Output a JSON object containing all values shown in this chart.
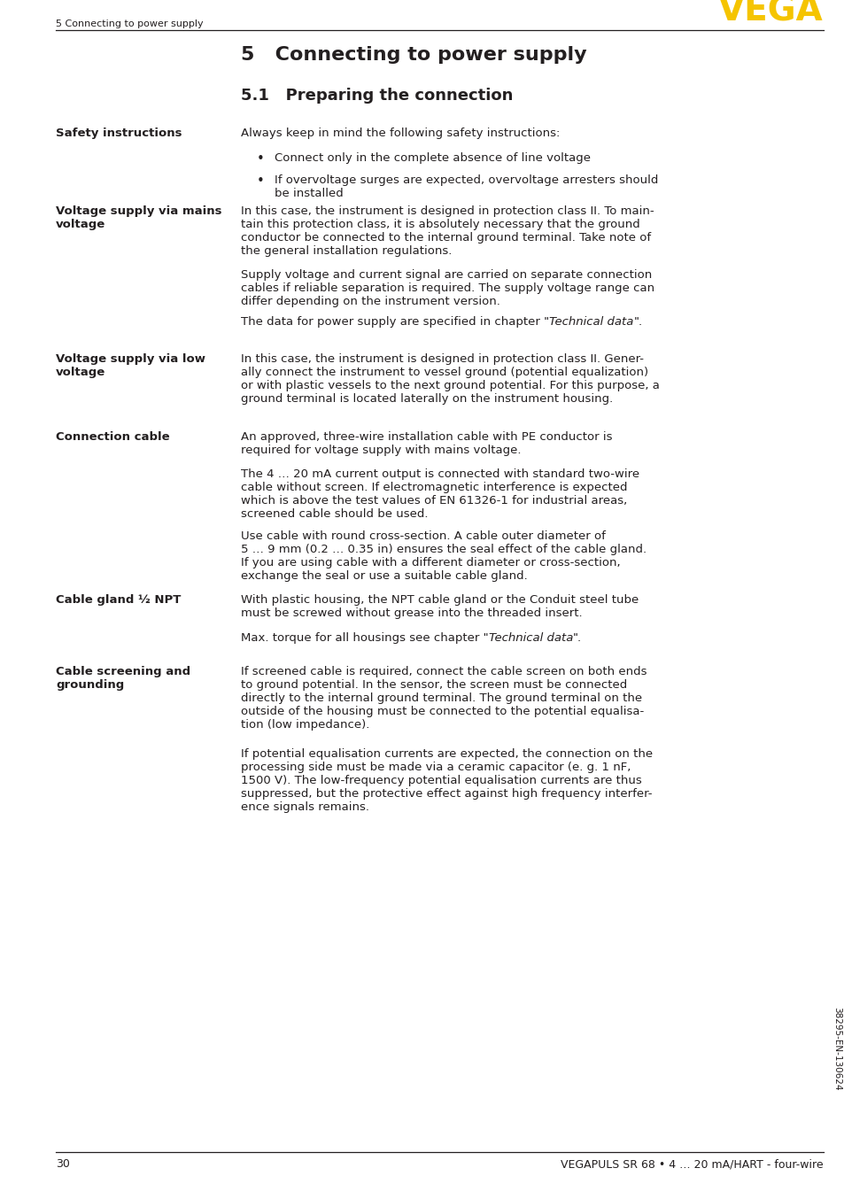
{
  "page_number": "30",
  "footer_text": "VEGAPULS SR 68 • 4 … 20 mA/HART - four-wire",
  "header_section": "5 Connecting to power supply",
  "vega_logo": "VEGA",
  "chapter_title": "5   Connecting to power supply",
  "section_title": "5.1   Preparing the connection",
  "sidebar_label_1": "Safety instructions",
  "sidebar_label_2": "Voltage supply via mains\nvoltage",
  "sidebar_label_3": "Voltage supply via low\nvoltage",
  "sidebar_label_4": "Connection cable",
  "sidebar_label_5": "Cable gland ½ NPT",
  "sidebar_label_6": "Cable screening and\ngrounding",
  "content_1_intro": "Always keep in mind the following safety instructions:",
  "content_1_b1": "Connect only in the complete absence of line voltage",
  "content_1_b2": "If overvoltage surges are expected, overvoltage arresters should\nbe installed",
  "content_2_para1": "In this case, the instrument is designed in protection class II. To main-\ntain this protection class, it is absolutely necessary that the ground\nconductor be connected to the internal ground terminal. Take note of\nthe general installation regulations.",
  "content_2_para2": "Supply voltage and current signal are carried on separate connection\ncables if reliable separation is required. The supply voltage range can\ndiffer depending on the instrument version.",
  "content_2_para3_pre": "The data for power supply are specified in chapter \"",
  "content_2_para3_italic": "Technical data",
  "content_2_para3_post": "\".",
  "content_3_para1": "In this case, the instrument is designed in protection class II. Gener-\nally connect the instrument to vessel ground (potential equalization)\nor with plastic vessels to the next ground potential. For this purpose, a\nground terminal is located laterally on the instrument housing.",
  "content_4_para1": "An approved, three-wire installation cable with PE conductor is\nrequired for voltage supply with mains voltage.",
  "content_4_para2": "The 4 … 20 mA current output is connected with standard two-wire\ncable without screen. If electromagnetic interference is expected\nwhich is above the test values of EN 61326-1 for industrial areas,\nscreened cable should be used.",
  "content_4_para3": "Use cable with round cross-section. A cable outer diameter of\n5 … 9 mm (0.2 … 0.35 in) ensures the seal effect of the cable gland.\nIf you are using cable with a different diameter or cross-section,\nexchange the seal or use a suitable cable gland.",
  "content_5_para1": "With plastic housing, the NPT cable gland or the Conduit steel tube\nmust be screwed without grease into the threaded insert.",
  "content_5_para2_pre": "Max. torque for all housings see chapter \"",
  "content_5_para2_italic": "Technical data",
  "content_5_para2_post": "\".",
  "content_6_para1": "If screened cable is required, connect the cable screen on both ends\nto ground potential. In the sensor, the screen must be connected\ndirectly to the internal ground terminal. The ground terminal on the\noutside of the housing must be connected to the potential equalisa-\ntion (low impedance).",
  "content_6_para2": "If potential equalisation currents are expected, the connection on the\nprocessing side must be made via a ceramic capacitor (e. g. 1 nF,\n1500 V). The low-frequency potential equalisation currents are thus\nsuppressed, but the protective effect against high frequency interfer-\nence signals remains.",
  "rotated_text": "38295-EN-130624",
  "bg_color": "#ffffff",
  "text_color": "#231f20",
  "vega_color": "#f5c400"
}
